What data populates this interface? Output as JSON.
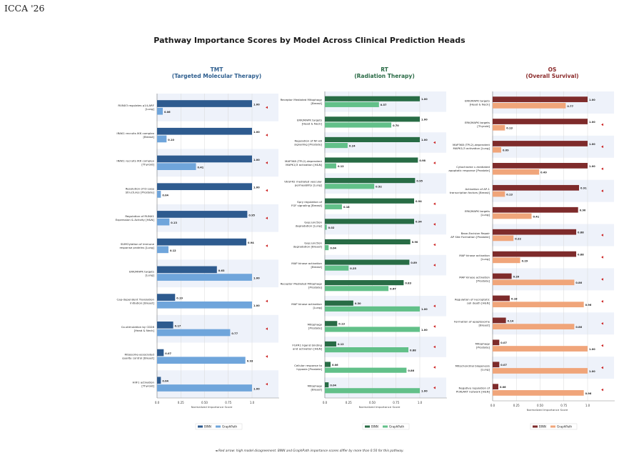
{
  "header": {
    "brand": "ICCA '26",
    "title": "Pathway Importance Scores by Model Across Clinical Prediction Heads",
    "footnote": "◄  Red arrow: high model disagreement. BINN and GraphPath importance scores differ by more than 0.50 for this pathway."
  },
  "colors": {
    "flag_arrow": "#cc2222",
    "highlight_band": "#eef2fa"
  },
  "chart_data": [
    {
      "type": "bar",
      "orientation": "horizontal",
      "title": "TMT",
      "subtitle": "(Targeted Molecular Therapy)",
      "title_color": "#2f5f8f",
      "xlabel": "Normalized Importance Score",
      "xlim": [
        0,
        1.0
      ],
      "xticks": [
        "0.0",
        "0.25",
        "0.50",
        "0.75",
        "1.0"
      ],
      "legend": "bottom",
      "series": [
        {
          "name": "BINN",
          "color": "#2e5b8f"
        },
        {
          "name": "GraphPath",
          "color": "#6fa5db"
        }
      ],
      "categories": [
        {
          "label": [
            "RUNX3 regulates p14-ARF",
            "[Lung]"
          ],
          "binn": 1.0,
          "graphpath": 0.06,
          "flag": true,
          "band": true
        },
        {
          "label": [
            "IRAK1 recruits IKK complex",
            "[Breast]"
          ],
          "binn": 1.0,
          "graphpath": 0.1,
          "flag": true,
          "band": false
        },
        {
          "label": [
            "IRAK1 recruits IKK complex",
            "[Thyroid]"
          ],
          "binn": 1.0,
          "graphpath": 0.41,
          "flag": true,
          "band": true
        },
        {
          "label": [
            "Resolution of D-Loop",
            "Structures [Prostate]"
          ],
          "binn": 1.0,
          "graphpath": 0.04,
          "flag": true,
          "band": false
        },
        {
          "label": [
            "Regulation of RUNX1",
            "Expression & Activity [H&N]"
          ],
          "binn": 0.95,
          "graphpath": 0.13,
          "flag": true,
          "band": true
        },
        {
          "label": [
            "SUMOylation of immune",
            "response proteins [Lung]"
          ],
          "binn": 0.94,
          "graphpath": 0.12,
          "flag": true,
          "band": false
        },
        {
          "label": [
            "ERK/MAPK targets",
            "[Lung]"
          ],
          "binn": 0.63,
          "graphpath": 1.0,
          "flag": false,
          "band": true
        },
        {
          "label": [
            "Cap-dependent Translation",
            "Initiation [Breast]"
          ],
          "binn": 0.19,
          "graphpath": 1.0,
          "flag": true,
          "band": false
        },
        {
          "label": [
            "Co-stimulation by CD28",
            "[Head & Neck]"
          ],
          "binn": 0.17,
          "graphpath": 0.77,
          "flag": true,
          "band": true
        },
        {
          "label": [
            "Ribosome-associated",
            "quality control [Breast]"
          ],
          "binn": 0.07,
          "graphpath": 0.93,
          "flag": true,
          "band": false
        },
        {
          "label": [
            "HIIF1 activation",
            "[Thyroid]"
          ],
          "binn": 0.04,
          "graphpath": 1.0,
          "flag": true,
          "band": true
        }
      ]
    },
    {
      "type": "bar",
      "orientation": "horizontal",
      "title": "RT",
      "subtitle": "(Radiation Therapy)",
      "title_color": "#2a6b46",
      "xlabel": "Normalized Importance Score",
      "xlim": [
        0,
        1.0
      ],
      "xticks": [
        "0.0",
        "0.25",
        "0.50",
        "0.75",
        "1.0"
      ],
      "legend": "bottom",
      "series": [
        {
          "name": "BINN",
          "color": "#286c45"
        },
        {
          "name": "GraphPath",
          "color": "#62c089"
        }
      ],
      "categories": [
        {
          "label": [
            "Receptor Mediated Mitophagy",
            "[Breast]"
          ],
          "binn": 1.0,
          "graphpath": 0.57,
          "flag": false,
          "band": true
        },
        {
          "label": [
            "ERK/MAPK targets",
            "[Head & Neck]"
          ],
          "binn": 1.0,
          "graphpath": 0.7,
          "flag": false,
          "band": false
        },
        {
          "label": [
            "Regulation of NF-κB",
            "signalling [Prostate]"
          ],
          "binn": 1.0,
          "graphpath": 0.24,
          "flag": true,
          "band": true
        },
        {
          "label": [
            "MAP3K8 (TPL2)-dependent",
            "MAPK1/3 activation [H&N]"
          ],
          "binn": 0.98,
          "graphpath": 0.12,
          "flag": true,
          "band": false
        },
        {
          "label": [
            "VEGFR2 mediated vascular",
            "permeability [Lung]"
          ],
          "binn": 0.95,
          "graphpath": 0.52,
          "flag": false,
          "band": true
        },
        {
          "label": [
            "Spry regulation of",
            "FGF signaling [Breast]"
          ],
          "binn": 0.94,
          "graphpath": 0.18,
          "flag": true,
          "band": false
        },
        {
          "label": [
            "Gap junction",
            "degradation [Lung]"
          ],
          "binn": 0.94,
          "graphpath": 0.02,
          "flag": true,
          "band": true
        },
        {
          "label": [
            "Gap junction",
            "degradation [Breast]"
          ],
          "binn": 0.9,
          "graphpath": 0.04,
          "flag": true,
          "band": false
        },
        {
          "label": [
            "MAP kinase activation",
            "[Breast]"
          ],
          "binn": 0.89,
          "graphpath": 0.25,
          "flag": true,
          "band": true
        },
        {
          "label": [
            "Receptor Mediated Mitophagy",
            "[Prostate]"
          ],
          "binn": 0.83,
          "graphpath": 0.67,
          "flag": false,
          "band": false
        },
        {
          "label": [
            "MAP kinase activation",
            "[Lung]"
          ],
          "binn": 0.3,
          "graphpath": 1.0,
          "flag": true,
          "band": true
        },
        {
          "label": [
            "Mitophagy",
            "[Prostate]"
          ],
          "binn": 0.13,
          "graphpath": 1.0,
          "flag": true,
          "band": false
        },
        {
          "label": [
            "FGFR1 ligand binding",
            "and activation [H&N]"
          ],
          "binn": 0.12,
          "graphpath": 0.88,
          "flag": true,
          "band": true
        },
        {
          "label": [
            "Cellular response to",
            "hypoxia [Prostate]"
          ],
          "binn": 0.06,
          "graphpath": 0.86,
          "flag": true,
          "band": false
        },
        {
          "label": [
            "Mitophagy",
            "[Breast]"
          ],
          "binn": 0.04,
          "graphpath": 1.0,
          "flag": true,
          "band": true
        }
      ]
    },
    {
      "type": "bar",
      "orientation": "horizontal",
      "title": "OS",
      "subtitle": "(Overall Survival)",
      "title_color": "#8b2a2a",
      "xlabel": "Normalized Importance Score",
      "xlim": [
        0,
        1.0
      ],
      "xticks": [
        "0.0",
        "0.25",
        "0.50",
        "0.75",
        "1.0"
      ],
      "legend": "bottom",
      "series": [
        {
          "name": "BINN",
          "color": "#7e2b2b"
        },
        {
          "name": "GraphPath",
          "color": "#f0a57a"
        }
      ],
      "categories": [
        {
          "label": [
            "ERK/MAPK targets",
            "[Head & Neck]"
          ],
          "binn": 1.0,
          "graphpath": 0.77,
          "flag": false,
          "band": true
        },
        {
          "label": [
            "ERK/MAPK targets",
            "[Thyroid]"
          ],
          "binn": 1.0,
          "graphpath": 0.13,
          "flag": true,
          "band": false
        },
        {
          "label": [
            "MAP3K8 (TPL2)-dependent",
            "MAPK1/3 activation [Lung]"
          ],
          "binn": 1.0,
          "graphpath": 0.09,
          "flag": true,
          "band": true
        },
        {
          "label": [
            "Cytochrome c-mediated",
            "apoptotic response [Prostate]"
          ],
          "binn": 1.0,
          "graphpath": 0.49,
          "flag": true,
          "band": false
        },
        {
          "label": [
            "Activation of AP-1",
            "transcription factors [Breast]"
          ],
          "binn": 0.91,
          "graphpath": 0.13,
          "flag": true,
          "band": true
        },
        {
          "label": [
            "ERK/MAPK targets",
            "[Lung]"
          ],
          "binn": 0.9,
          "graphpath": 0.41,
          "flag": false,
          "band": false
        },
        {
          "label": [
            "Base-Excision Repair",
            "AP Site Formation [Prostate]"
          ],
          "binn": 0.88,
          "graphpath": 0.22,
          "flag": true,
          "band": true
        },
        {
          "label": [
            "MAP kinase activation",
            "[Lung]"
          ],
          "binn": 0.88,
          "graphpath": 0.29,
          "flag": true,
          "band": false
        },
        {
          "label": [
            "MAP kinase activation",
            "[Prostate]"
          ],
          "binn": 0.2,
          "graphpath": 0.86,
          "flag": true,
          "band": true
        },
        {
          "label": [
            "Regulation of necroptotic",
            "cell death [H&N]"
          ],
          "binn": 0.18,
          "graphpath": 0.96,
          "flag": true,
          "band": false
        },
        {
          "label": [
            "Formation of apoptosome",
            "[Breast]"
          ],
          "binn": 0.14,
          "graphpath": 0.86,
          "flag": true,
          "band": true
        },
        {
          "label": [
            "Mitophagy",
            "[Prostate]"
          ],
          "binn": 0.07,
          "graphpath": 1.0,
          "flag": true,
          "band": false
        },
        {
          "label": [
            "Mitochondrial biogenesis",
            "[Lung]"
          ],
          "binn": 0.07,
          "graphpath": 1.0,
          "flag": true,
          "band": true
        },
        {
          "label": [
            "Negative regulation of",
            "PI3K/AKT network [H&N]"
          ],
          "binn": 0.06,
          "graphpath": 0.96,
          "flag": true,
          "band": false
        }
      ]
    }
  ]
}
